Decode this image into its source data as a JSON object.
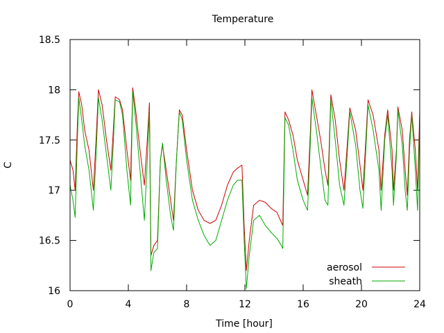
{
  "chart_data": {
    "type": "line",
    "title": "Temperature",
    "xlabel": "Time [hour]",
    "ylabel": "C",
    "xlim": [
      0,
      24
    ],
    "ylim": [
      16,
      18.5
    ],
    "xticks": [
      0,
      4,
      8,
      12,
      16,
      20,
      24
    ],
    "yticks": [
      16,
      16.5,
      17,
      17.5,
      18,
      18.5
    ],
    "x_tick_labels": [
      "0",
      "4",
      "8",
      "12",
      "16",
      "20",
      "24"
    ],
    "y_tick_labels": [
      "16",
      "16.5",
      "17",
      "17.5",
      "18",
      "18.5"
    ],
    "grid": false,
    "legend_position": "bottom-right",
    "series": [
      {
        "name": "aerosol",
        "color": "#cc0000",
        "points": [
          [
            0.0,
            17.3
          ],
          [
            0.2,
            17.2
          ],
          [
            0.35,
            17.0
          ],
          [
            0.5,
            17.65
          ],
          [
            0.6,
            17.98
          ],
          [
            0.8,
            17.85
          ],
          [
            1.0,
            17.6
          ],
          [
            1.3,
            17.4
          ],
          [
            1.6,
            17.0
          ],
          [
            1.8,
            17.55
          ],
          [
            1.95,
            18.0
          ],
          [
            2.2,
            17.85
          ],
          [
            2.5,
            17.5
          ],
          [
            2.8,
            17.2
          ],
          [
            2.95,
            17.55
          ],
          [
            3.1,
            17.93
          ],
          [
            3.4,
            17.9
          ],
          [
            3.6,
            17.8
          ],
          [
            3.9,
            17.4
          ],
          [
            4.15,
            17.1
          ],
          [
            4.3,
            18.02
          ],
          [
            4.5,
            17.8
          ],
          [
            4.8,
            17.4
          ],
          [
            5.1,
            17.05
          ],
          [
            5.3,
            17.5
          ],
          [
            5.45,
            17.87
          ],
          [
            5.55,
            16.35
          ],
          [
            5.75,
            16.45
          ],
          [
            6.0,
            16.5
          ],
          [
            6.2,
            17.3
          ],
          [
            6.35,
            17.45
          ],
          [
            6.6,
            17.2
          ],
          [
            6.9,
            16.9
          ],
          [
            7.1,
            16.7
          ],
          [
            7.3,
            17.3
          ],
          [
            7.5,
            17.8
          ],
          [
            7.7,
            17.75
          ],
          [
            8.0,
            17.4
          ],
          [
            8.4,
            17.0
          ],
          [
            8.8,
            16.8
          ],
          [
            9.2,
            16.7
          ],
          [
            9.6,
            16.67
          ],
          [
            10.0,
            16.7
          ],
          [
            10.4,
            16.85
          ],
          [
            10.8,
            17.05
          ],
          [
            11.2,
            17.18
          ],
          [
            11.5,
            17.22
          ],
          [
            11.8,
            17.25
          ],
          [
            11.95,
            16.65
          ],
          [
            12.1,
            16.2
          ],
          [
            12.3,
            16.5
          ],
          [
            12.6,
            16.85
          ],
          [
            13.0,
            16.9
          ],
          [
            13.4,
            16.88
          ],
          [
            13.8,
            16.82
          ],
          [
            14.2,
            16.78
          ],
          [
            14.5,
            16.68
          ],
          [
            14.6,
            16.65
          ],
          [
            14.75,
            17.78
          ],
          [
            15.0,
            17.7
          ],
          [
            15.3,
            17.55
          ],
          [
            15.6,
            17.3
          ],
          [
            16.0,
            17.1
          ],
          [
            16.3,
            16.95
          ],
          [
            16.5,
            17.6
          ],
          [
            16.6,
            18.0
          ],
          [
            16.9,
            17.75
          ],
          [
            17.2,
            17.5
          ],
          [
            17.5,
            17.2
          ],
          [
            17.7,
            17.05
          ],
          [
            17.8,
            17.5
          ],
          [
            17.9,
            17.95
          ],
          [
            18.2,
            17.7
          ],
          [
            18.5,
            17.3
          ],
          [
            18.8,
            17.0
          ],
          [
            19.0,
            17.4
          ],
          [
            19.2,
            17.82
          ],
          [
            19.6,
            17.6
          ],
          [
            19.9,
            17.25
          ],
          [
            20.1,
            17.0
          ],
          [
            20.3,
            17.5
          ],
          [
            20.45,
            17.9
          ],
          [
            20.8,
            17.75
          ],
          [
            21.2,
            17.4
          ],
          [
            21.35,
            17.0
          ],
          [
            21.6,
            17.55
          ],
          [
            21.8,
            17.8
          ],
          [
            22.1,
            17.4
          ],
          [
            22.2,
            17.0
          ],
          [
            22.4,
            17.4
          ],
          [
            22.5,
            17.83
          ],
          [
            22.8,
            17.6
          ],
          [
            23.0,
            17.2
          ],
          [
            23.15,
            16.95
          ],
          [
            23.3,
            17.5
          ],
          [
            23.45,
            17.78
          ],
          [
            23.7,
            17.4
          ],
          [
            23.85,
            17.0
          ],
          [
            24.0,
            17.78
          ]
        ]
      },
      {
        "name": "sheath",
        "color": "#00aa00",
        "points": [
          [
            0.0,
            17.05
          ],
          [
            0.2,
            16.9
          ],
          [
            0.35,
            16.73
          ],
          [
            0.5,
            17.5
          ],
          [
            0.6,
            17.92
          ],
          [
            0.8,
            17.7
          ],
          [
            1.0,
            17.45
          ],
          [
            1.3,
            17.2
          ],
          [
            1.6,
            16.8
          ],
          [
            1.8,
            17.4
          ],
          [
            1.95,
            17.92
          ],
          [
            2.2,
            17.7
          ],
          [
            2.5,
            17.35
          ],
          [
            2.8,
            17.0
          ],
          [
            2.95,
            17.4
          ],
          [
            3.1,
            17.9
          ],
          [
            3.4,
            17.88
          ],
          [
            3.6,
            17.75
          ],
          [
            3.9,
            17.2
          ],
          [
            4.15,
            16.85
          ],
          [
            4.3,
            17.98
          ],
          [
            4.5,
            17.7
          ],
          [
            4.8,
            17.2
          ],
          [
            5.1,
            16.7
          ],
          [
            5.3,
            17.3
          ],
          [
            5.45,
            17.8
          ],
          [
            5.55,
            16.2
          ],
          [
            5.75,
            16.38
          ],
          [
            6.0,
            16.42
          ],
          [
            6.2,
            17.3
          ],
          [
            6.35,
            17.47
          ],
          [
            6.6,
            17.1
          ],
          [
            6.9,
            16.75
          ],
          [
            7.1,
            16.6
          ],
          [
            7.3,
            17.3
          ],
          [
            7.5,
            17.78
          ],
          [
            7.7,
            17.7
          ],
          [
            8.0,
            17.3
          ],
          [
            8.4,
            16.9
          ],
          [
            8.8,
            16.7
          ],
          [
            9.2,
            16.55
          ],
          [
            9.6,
            16.45
          ],
          [
            10.0,
            16.5
          ],
          [
            10.4,
            16.7
          ],
          [
            10.8,
            16.9
          ],
          [
            11.2,
            17.05
          ],
          [
            11.5,
            17.1
          ],
          [
            11.8,
            17.1
          ],
          [
            11.95,
            16.5
          ],
          [
            12.1,
            16.02
          ],
          [
            12.3,
            16.35
          ],
          [
            12.6,
            16.7
          ],
          [
            13.0,
            16.75
          ],
          [
            13.4,
            16.65
          ],
          [
            13.8,
            16.58
          ],
          [
            14.2,
            16.52
          ],
          [
            14.5,
            16.45
          ],
          [
            14.6,
            16.42
          ],
          [
            14.75,
            17.72
          ],
          [
            15.0,
            17.65
          ],
          [
            15.3,
            17.4
          ],
          [
            15.6,
            17.1
          ],
          [
            16.0,
            16.9
          ],
          [
            16.3,
            16.8
          ],
          [
            16.5,
            17.5
          ],
          [
            16.6,
            17.92
          ],
          [
            16.9,
            17.6
          ],
          [
            17.2,
            17.25
          ],
          [
            17.5,
            16.9
          ],
          [
            17.7,
            16.85
          ],
          [
            17.8,
            17.4
          ],
          [
            17.9,
            17.9
          ],
          [
            18.2,
            17.5
          ],
          [
            18.5,
            17.05
          ],
          [
            18.8,
            16.85
          ],
          [
            19.0,
            17.3
          ],
          [
            19.2,
            17.78
          ],
          [
            19.6,
            17.45
          ],
          [
            19.9,
            17.0
          ],
          [
            20.1,
            16.82
          ],
          [
            20.3,
            17.4
          ],
          [
            20.45,
            17.85
          ],
          [
            20.8,
            17.6
          ],
          [
            21.2,
            17.2
          ],
          [
            21.35,
            16.8
          ],
          [
            21.6,
            17.5
          ],
          [
            21.8,
            17.75
          ],
          [
            22.1,
            17.2
          ],
          [
            22.2,
            16.85
          ],
          [
            22.4,
            17.35
          ],
          [
            22.5,
            17.8
          ],
          [
            22.8,
            17.45
          ],
          [
            23.0,
            17.0
          ],
          [
            23.15,
            16.8
          ],
          [
            23.3,
            17.4
          ],
          [
            23.45,
            17.75
          ],
          [
            23.7,
            17.2
          ],
          [
            23.85,
            16.8
          ],
          [
            24.0,
            17.7
          ]
        ]
      }
    ]
  }
}
